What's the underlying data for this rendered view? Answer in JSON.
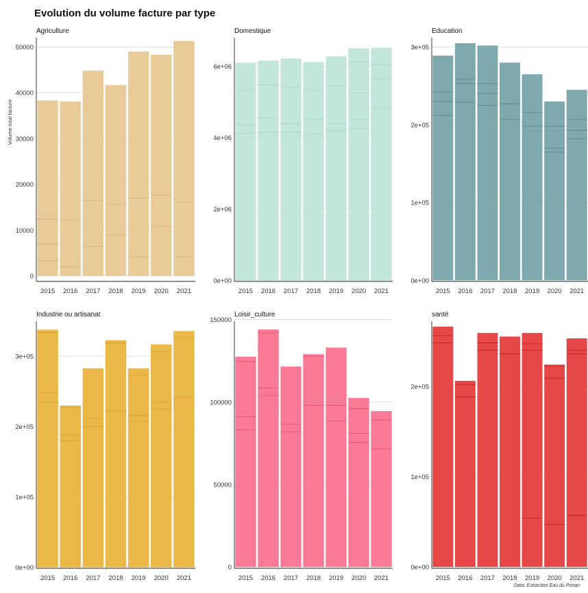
{
  "title": "Evolution du volume facture par type",
  "ylabel": "Volume total facture",
  "caption": "Data: Extraction Eau du Ponan",
  "chart_data": [
    {
      "type": "bar",
      "facet": "Agriculture",
      "color": "#E9CB99",
      "segment_line_color": "#D8B57C",
      "categories": [
        "2015",
        "2016",
        "2017",
        "2018",
        "2019",
        "2020",
        "2021"
      ],
      "values": [
        38300,
        38100,
        44800,
        41700,
        49000,
        48300,
        51300
      ],
      "segment_boundaries": [
        [
          3300,
          7000,
          12400
        ],
        [
          2000,
          12300
        ],
        [
          6400,
          16500
        ],
        [
          9000,
          15600
        ],
        [
          4200,
          17000
        ],
        [
          10800,
          17600
        ],
        [
          4200,
          16100
        ]
      ],
      "ylim": [
        -1200,
        52000
      ],
      "yticks": [
        0,
        10000,
        20000,
        30000,
        40000,
        50000
      ],
      "ytick_labels": [
        "0",
        "10000",
        "20000",
        "30000",
        "40000",
        "50000"
      ],
      "grid": true
    },
    {
      "type": "bar",
      "facet": "Domestique",
      "color": "#C3E6DC",
      "segment_line_color": "#A9D5C9",
      "categories": [
        "2015",
        "2016",
        "2017",
        "2018",
        "2019",
        "2020",
        "2021"
      ],
      "values": [
        6100000,
        6160000,
        6220000,
        6120000,
        6280000,
        6500000,
        6520000
      ],
      "segment_boundaries": [
        [
          4120000,
          4350000,
          5300000
        ],
        [
          4150000,
          4550000,
          5480000
        ],
        [
          4150000,
          4400000,
          5420000
        ],
        [
          4100000,
          4500000,
          5300000
        ],
        [
          4200000,
          4400000,
          5450000
        ],
        [
          4250000,
          4500000,
          5250000,
          6120000
        ],
        [
          4820000,
          5650000,
          6050000
        ]
      ],
      "ylim": [
        -30000,
        6800000
      ],
      "yticks": [
        0,
        2000000,
        4000000,
        6000000
      ],
      "ytick_labels": [
        "0e+00",
        "2e+06",
        "4e+06",
        "6e+06"
      ],
      "grid": true
    },
    {
      "type": "bar",
      "facet": "Education",
      "color": "#7EA9AF",
      "segment_line_color": "#5C878C",
      "categories": [
        "2015",
        "2016",
        "2017",
        "2018",
        "2019",
        "2020",
        "2021"
      ],
      "values": [
        289000,
        305000,
        302000,
        280000,
        265000,
        230000,
        245000
      ],
      "segment_boundaries": [
        [
          212000,
          230000,
          242000
        ],
        [
          229000,
          253000,
          259000
        ],
        [
          225000,
          240000,
          253000
        ],
        [
          207000,
          227000
        ],
        [
          198000,
          216000
        ],
        [
          165000,
          170000,
          198000
        ],
        [
          182000,
          193000,
          207000
        ]
      ],
      "ylim": [
        -1500,
        312000
      ],
      "yticks": [
        0,
        100000,
        200000,
        300000
      ],
      "ytick_labels": [
        "0e+00",
        "1e+05",
        "2e+05",
        "3e+05"
      ],
      "grid": true
    },
    {
      "type": "bar",
      "facet": "Industrie ou artisanat",
      "color": "#EAB847",
      "segment_line_color": "#D9A12B",
      "categories": [
        "2015",
        "2016",
        "2017",
        "2018",
        "2019",
        "2020",
        "2021"
      ],
      "values": [
        338000,
        230000,
        283000,
        323000,
        283000,
        317000,
        336000
      ],
      "segment_boundaries": [
        [
          235000,
          248000,
          334000
        ],
        [
          180000,
          188000,
          228000
        ],
        [
          200000,
          212000
        ],
        [
          222000,
          319000
        ],
        [
          208000,
          216000,
          273000
        ],
        [
          225000,
          235000,
          307000
        ],
        [
          242000,
          327000
        ]
      ],
      "ylim": [
        -1500,
        350000
      ],
      "yticks": [
        0,
        100000,
        200000,
        300000
      ],
      "ytick_labels": [
        "0e+00",
        "1e+05",
        "2e+05",
        "3e+05"
      ],
      "grid": true
    },
    {
      "type": "bar",
      "facet": "Loisir_culture",
      "color": "#F97A95",
      "segment_line_color": "#E05574",
      "categories": [
        "2015",
        "2016",
        "2017",
        "2018",
        "2019",
        "2020",
        "2021"
      ],
      "values": [
        127500,
        144000,
        121500,
        129000,
        133000,
        102500,
        94500
      ],
      "segment_boundaries": [
        [
          83000,
          91000,
          124500
        ],
        [
          104000,
          108500,
          142000
        ],
        [
          82000,
          86500
        ],
        [
          98000,
          127500
        ],
        [
          88500,
          98000
        ],
        [
          75500,
          81000,
          96000
        ],
        [
          71500,
          89000
        ]
      ],
      "ylim": [
        -800,
        149000
      ],
      "yticks": [
        0,
        50000,
        100000,
        150000
      ],
      "ytick_labels": [
        "0",
        "50000",
        "100000",
        "150000"
      ],
      "grid": true
    },
    {
      "type": "bar",
      "facet": "santé",
      "color": "#E64848",
      "segment_line_color": "#C21E1E",
      "categories": [
        "2015",
        "2016",
        "2017",
        "2018",
        "2019",
        "2020",
        "2021"
      ],
      "values": [
        266000,
        206000,
        259000,
        255000,
        259000,
        224000,
        253000
      ],
      "segment_boundaries": [
        [
          248000,
          256000
        ],
        [
          188000,
          202000
        ],
        [
          240000,
          248000
        ],
        [
          236000
        ],
        [
          54000,
          240000,
          247000
        ],
        [
          47000,
          209000,
          222000
        ],
        [
          57000,
          236000,
          240000
        ]
      ],
      "ylim": [
        -1500,
        272000
      ],
      "yticks": [
        0,
        100000,
        200000
      ],
      "ytick_labels": [
        "0e+00",
        "1e+05",
        "2e+05"
      ],
      "grid": true
    }
  ]
}
